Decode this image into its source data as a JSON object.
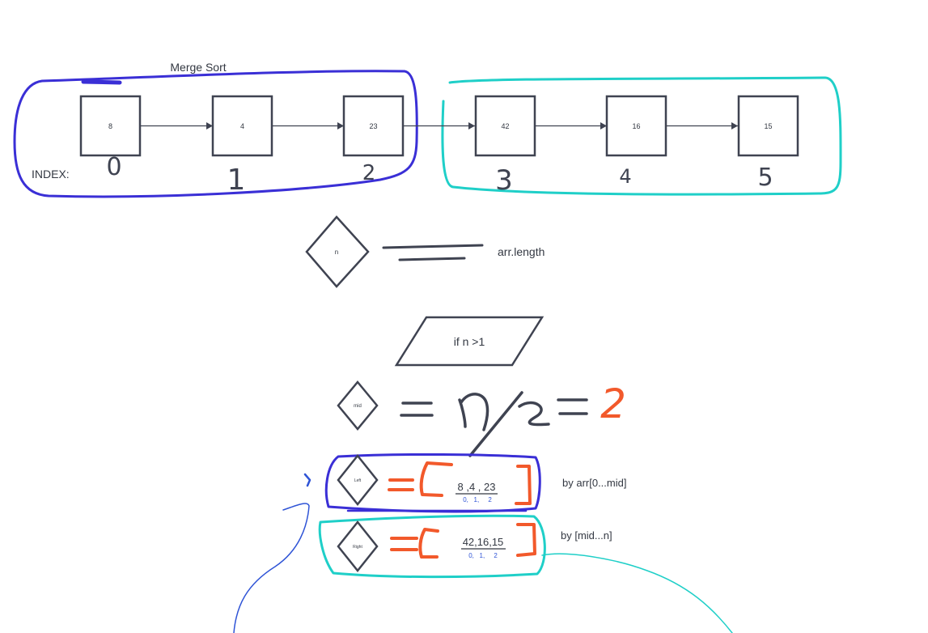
{
  "title": "Merge Sort",
  "index_label": "INDEX:",
  "nodes": [
    {
      "value": "8",
      "index": "0"
    },
    {
      "value": "4",
      "index": "1"
    },
    {
      "value": "23",
      "index": "2"
    },
    {
      "value": "42",
      "index": "3"
    },
    {
      "value": "16",
      "index": "4"
    },
    {
      "value": "15",
      "index": "5"
    }
  ],
  "n_node": {
    "label": "n",
    "note": "arr.length"
  },
  "condition": {
    "label": "if n >1"
  },
  "mid_node": {
    "label": "mid",
    "result": "2"
  },
  "left_node": {
    "label": "Left",
    "values": "8 ,4 , 23",
    "indices": "0,   1,     2",
    "note": "by arr[0...mid]"
  },
  "right_node": {
    "label": "Right",
    "values": "42,16,15",
    "indices": "0,   1,     2",
    "note": "by [mid...n]"
  },
  "colors": {
    "outline": "#3f4351",
    "blue_ink": "#3a2fd6",
    "cyan_ink": "#1fcfc8",
    "orange_ink": "#f2592b",
    "small_blue": "#2f54d6"
  }
}
